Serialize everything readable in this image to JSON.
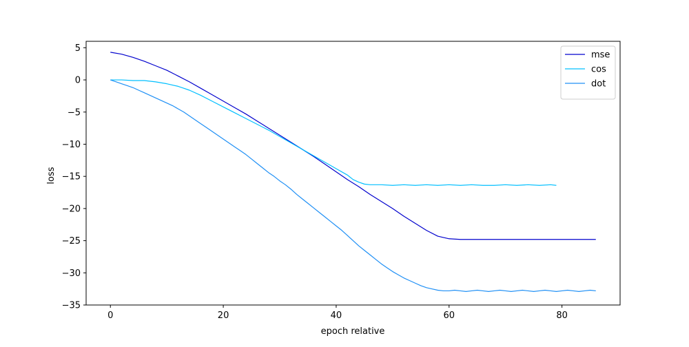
{
  "chart_data": {
    "type": "line",
    "title": "",
    "xlabel": "epoch relative",
    "ylabel": "loss",
    "xlim": [
      -4.3,
      90.3
    ],
    "ylim": [
      -35,
      6
    ],
    "x_ticks": [
      0,
      20,
      40,
      60,
      80
    ],
    "x_tick_labels": [
      "0",
      "20",
      "40",
      "60",
      "80"
    ],
    "y_ticks": [
      5,
      0,
      -5,
      -10,
      -15,
      -20,
      -25,
      -30,
      -35
    ],
    "y_tick_labels": [
      "5",
      "0",
      "−5",
      "−10",
      "−15",
      "−20",
      "−25",
      "−30",
      "−35"
    ],
    "grid": false,
    "legend_position": "top-right",
    "series": [
      {
        "name": "mse",
        "color": "#0000cd",
        "x": [
          0,
          2,
          4,
          6,
          8,
          10,
          12,
          14,
          16,
          18,
          20,
          22,
          24,
          26,
          28,
          30,
          32,
          34,
          36,
          38,
          40,
          42,
          44,
          46,
          48,
          50,
          52,
          54,
          56,
          58,
          60,
          62,
          64,
          66,
          68,
          70,
          72,
          74,
          76,
          78,
          80,
          82,
          84,
          86
        ],
        "y": [
          4.3,
          4.0,
          3.5,
          2.9,
          2.2,
          1.5,
          0.6,
          -0.3,
          -1.3,
          -2.3,
          -3.3,
          -4.3,
          -5.3,
          -6.4,
          -7.5,
          -8.6,
          -9.7,
          -10.8,
          -11.9,
          -13.1,
          -14.3,
          -15.5,
          -16.6,
          -17.8,
          -18.9,
          -20.0,
          -21.2,
          -22.3,
          -23.4,
          -24.3,
          -24.7,
          -24.8,
          -24.8,
          -24.8,
          -24.8,
          -24.8,
          -24.8,
          -24.8,
          -24.8,
          -24.8,
          -24.8,
          -24.8,
          -24.8,
          -24.8
        ]
      },
      {
        "name": "cos",
        "color": "#00bfff",
        "x": [
          0,
          2,
          4,
          6,
          8,
          10,
          12,
          14,
          16,
          18,
          20,
          22,
          24,
          26,
          28,
          30,
          32,
          34,
          36,
          38,
          40,
          42,
          43,
          44,
          45,
          46,
          48,
          50,
          52,
          54,
          56,
          58,
          60,
          62,
          64,
          66,
          68,
          70,
          72,
          74,
          76,
          78,
          79
        ],
        "y": [
          0.0,
          0.0,
          -0.1,
          -0.1,
          -0.3,
          -0.6,
          -1.0,
          -1.6,
          -2.4,
          -3.3,
          -4.2,
          -5.1,
          -6.0,
          -6.9,
          -7.8,
          -8.8,
          -9.8,
          -10.8,
          -11.8,
          -12.8,
          -13.8,
          -14.8,
          -15.5,
          -15.9,
          -16.2,
          -16.3,
          -16.3,
          -16.4,
          -16.3,
          -16.4,
          -16.3,
          -16.4,
          -16.3,
          -16.4,
          -16.3,
          -16.4,
          -16.4,
          -16.3,
          -16.4,
          -16.3,
          -16.4,
          -16.3,
          -16.4
        ]
      },
      {
        "name": "dot",
        "color": "#1e8ff5",
        "x": [
          0,
          1,
          2,
          3,
          4,
          5,
          6,
          7,
          8,
          9,
          10,
          11,
          12,
          13,
          14,
          15,
          16,
          17,
          18,
          19,
          20,
          21,
          22,
          23,
          24,
          25,
          26,
          27,
          28,
          29,
          30,
          31,
          32,
          33,
          34,
          35,
          36,
          37,
          38,
          39,
          40,
          41,
          42,
          43,
          44,
          45,
          46,
          47,
          48,
          49,
          50,
          51,
          52,
          53,
          54,
          55,
          56,
          57,
          58,
          59,
          60,
          61,
          62,
          63,
          64,
          65,
          66,
          67,
          68,
          69,
          70,
          71,
          72,
          73,
          74,
          75,
          76,
          77,
          78,
          79,
          80,
          81,
          82,
          83,
          84,
          85,
          86
        ],
        "y": [
          0.0,
          -0.3,
          -0.6,
          -0.9,
          -1.2,
          -1.6,
          -2.0,
          -2.4,
          -2.8,
          -3.2,
          -3.6,
          -4.0,
          -4.5,
          -5.0,
          -5.6,
          -6.2,
          -6.8,
          -7.4,
          -8.0,
          -8.6,
          -9.2,
          -9.8,
          -10.4,
          -11.0,
          -11.6,
          -12.3,
          -13.0,
          -13.7,
          -14.4,
          -15.0,
          -15.7,
          -16.3,
          -17.0,
          -17.8,
          -18.5,
          -19.2,
          -19.9,
          -20.6,
          -21.3,
          -22.0,
          -22.7,
          -23.4,
          -24.2,
          -25.0,
          -25.8,
          -26.5,
          -27.2,
          -27.9,
          -28.6,
          -29.2,
          -29.8,
          -30.3,
          -30.8,
          -31.2,
          -31.6,
          -32.0,
          -32.3,
          -32.5,
          -32.7,
          -32.8,
          -32.8,
          -32.7,
          -32.8,
          -32.9,
          -32.8,
          -32.7,
          -32.8,
          -32.9,
          -32.8,
          -32.7,
          -32.8,
          -32.9,
          -32.8,
          -32.7,
          -32.8,
          -32.9,
          -32.8,
          -32.7,
          -32.8,
          -32.9,
          -32.8,
          -32.7,
          -32.8,
          -32.9,
          -32.8,
          -32.7,
          -32.8
        ]
      }
    ]
  }
}
